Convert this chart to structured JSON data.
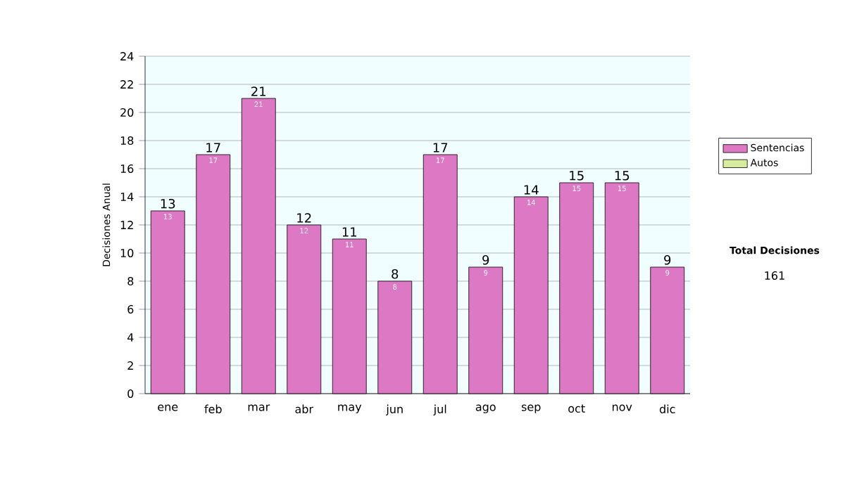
{
  "chart_data": {
    "type": "bar",
    "stacked": true,
    "ylabel": "Decisiones Anual",
    "categories": [
      "ene",
      "feb",
      "mar",
      "abr",
      "may",
      "jun",
      "jul",
      "ago",
      "sep",
      "oct",
      "nov",
      "dic"
    ],
    "series": [
      {
        "name": "Sentencias",
        "color": "#dc78c4",
        "values": [
          13,
          17,
          21,
          12,
          11,
          8,
          17,
          9,
          14,
          15,
          15,
          9
        ]
      },
      {
        "name": "Autos",
        "color": "#d8eca0",
        "values": [
          null,
          null,
          null,
          null,
          null,
          null,
          null,
          null,
          null,
          null,
          null,
          null
        ]
      }
    ],
    "totals": [
      "13",
      "17",
      "21",
      "12",
      "11",
      "8",
      "17",
      "9",
      "14",
      "15",
      "15",
      "9"
    ],
    "data_labels": true,
    "ylim": [
      0,
      24
    ],
    "yticks": [
      0,
      2,
      4,
      6,
      8,
      10,
      12,
      14,
      16,
      18,
      20,
      22,
      24
    ],
    "grid": "y",
    "legend": "right",
    "annotations": [
      "Total Decisiones",
      "161"
    ]
  }
}
